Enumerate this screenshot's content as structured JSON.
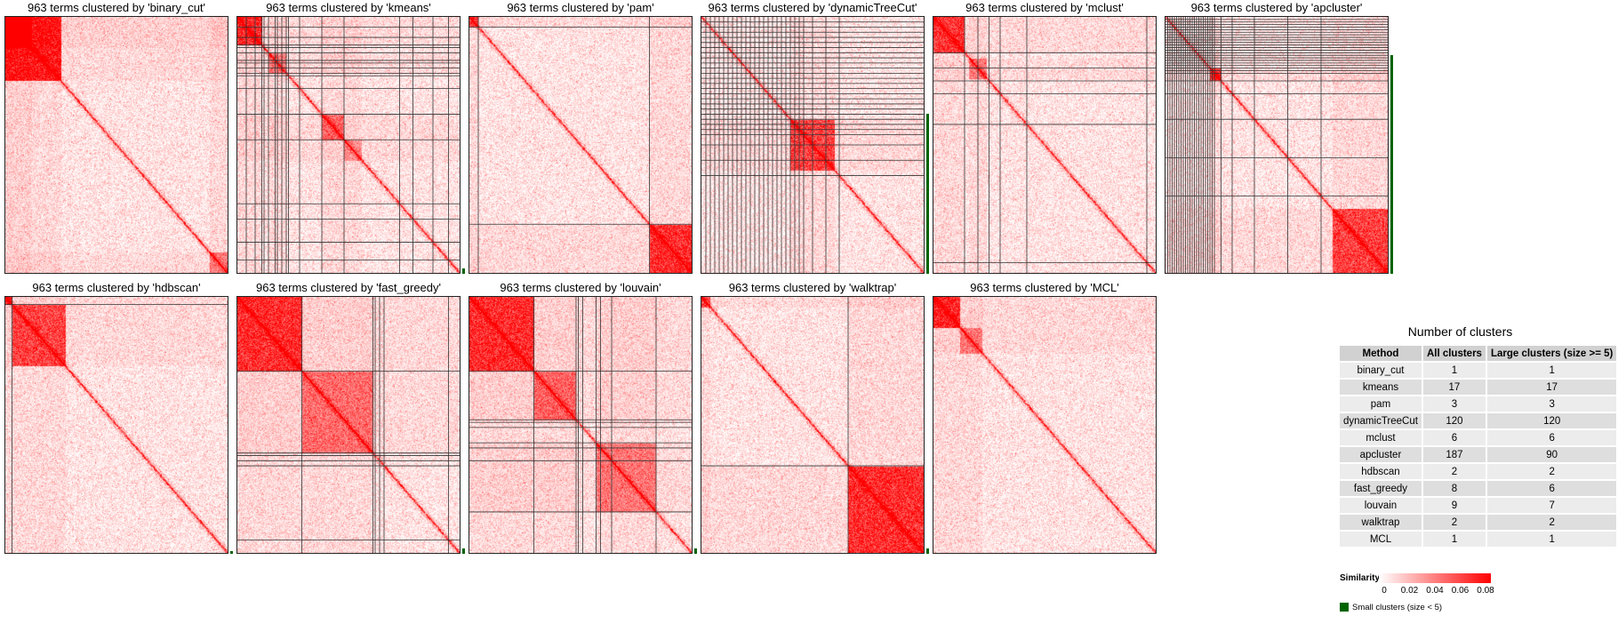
{
  "panels": [
    {
      "title": "963 terms clustered by 'binary_cut'",
      "method": "binary_cut",
      "boundaries": [],
      "blocks": [
        [
          0,
          0.25,
          1.0
        ],
        [
          0,
          0.12,
          0.9
        ],
        [
          0.92,
          1.0,
          0.5
        ]
      ],
      "small_bar": null
    },
    {
      "title": "963 terms clustered by 'kmeans'",
      "method": "kmeans",
      "boundaries": [
        0.04,
        0.08,
        0.11,
        0.12,
        0.14,
        0.17,
        0.18,
        0.2,
        0.22,
        0.23,
        0.28,
        0.38,
        0.48,
        0.73,
        0.79,
        0.88,
        0.95
      ],
      "blocks": [
        [
          0,
          0.11,
          0.9
        ],
        [
          0.38,
          0.48,
          0.6
        ],
        [
          0.14,
          0.22,
          0.5
        ],
        [
          0.48,
          0.56,
          0.4
        ]
      ],
      "small_bar": [
        0.98,
        1.0
      ]
    },
    {
      "title": "963 terms clustered by 'pam'",
      "method": "pam",
      "boundaries": [
        0.04,
        0.81
      ],
      "blocks": [
        [
          0,
          0.04,
          0.7
        ],
        [
          0.81,
          1.0,
          0.85
        ]
      ],
      "small_bar": null
    },
    {
      "title": "963 terms clustered by 'dynamicTreeCut'",
      "method": "dynamicTreeCut",
      "boundaries": [
        0.02,
        0.04,
        0.06,
        0.08,
        0.1,
        0.12,
        0.14,
        0.16,
        0.18,
        0.2,
        0.22,
        0.24,
        0.26,
        0.28,
        0.3,
        0.32,
        0.34,
        0.36,
        0.38,
        0.4,
        0.42,
        0.44,
        0.46,
        0.5,
        0.56,
        0.62
      ],
      "blocks": [
        [
          0.4,
          0.6,
          0.75
        ]
      ],
      "small_bar": [
        0.38,
        1.0
      ]
    },
    {
      "title": "963 terms clustered by 'mclust'",
      "method": "mclust",
      "boundaries": [
        0.14,
        0.2,
        0.25,
        0.3,
        0.42,
        0.96
      ],
      "blocks": [
        [
          0,
          0.14,
          0.8
        ],
        [
          0.16,
          0.24,
          0.5
        ]
      ],
      "small_bar": null
    },
    {
      "title": "963 terms clustered by 'apcluster'",
      "method": "apcluster",
      "boundaries": [
        0.01,
        0.02,
        0.03,
        0.04,
        0.05,
        0.06,
        0.07,
        0.08,
        0.09,
        0.1,
        0.11,
        0.12,
        0.13,
        0.14,
        0.15,
        0.16,
        0.17,
        0.18,
        0.19,
        0.2,
        0.21,
        0.22,
        0.25,
        0.3,
        0.4,
        0.55,
        0.7
      ],
      "blocks": [
        [
          0.2,
          0.25,
          0.85
        ],
        [
          0.75,
          1.0,
          0.75
        ]
      ],
      "small_bar": [
        0.15,
        1.0
      ]
    },
    {
      "title": "963 terms clustered by 'hdbscan'",
      "method": "hdbscan",
      "boundaries": [
        0.03
      ],
      "blocks": [
        [
          0,
          0.03,
          0.9
        ],
        [
          0.03,
          0.27,
          0.75
        ]
      ],
      "small_bar": [
        0.99,
        1.0
      ]
    },
    {
      "title": "963 terms clustered by 'fast_greedy'",
      "method": "fast_greedy",
      "boundaries": [
        0.29,
        0.61,
        0.62,
        0.64,
        0.66,
        0.95
      ],
      "blocks": [
        [
          0,
          0.29,
          0.85
        ],
        [
          0.29,
          0.61,
          0.55
        ]
      ],
      "small_bar": [
        0.98,
        1.0
      ]
    },
    {
      "title": "963 terms clustered by 'louvain'",
      "method": "louvain",
      "boundaries": [
        0.29,
        0.48,
        0.49,
        0.51,
        0.57,
        0.59,
        0.64,
        0.84
      ],
      "blocks": [
        [
          0,
          0.29,
          0.85
        ],
        [
          0.29,
          0.48,
          0.6
        ],
        [
          0.57,
          0.84,
          0.5
        ]
      ],
      "small_bar": [
        0.98,
        1.0
      ]
    },
    {
      "title": "963 terms clustered by 'walktrap'",
      "method": "walktrap",
      "boundaries": [
        0.66
      ],
      "blocks": [
        [
          0,
          0.04,
          0.7
        ],
        [
          0.66,
          1.0,
          0.85
        ]
      ],
      "small_bar": [
        0.98,
        1.0
      ]
    },
    {
      "title": "963 terms clustered by 'MCL'",
      "method": "MCL",
      "boundaries": [],
      "blocks": [
        [
          0,
          0.12,
          0.9
        ],
        [
          0.12,
          0.22,
          0.5
        ]
      ],
      "small_bar": null
    }
  ],
  "table": {
    "title": "Number of clusters",
    "headers": [
      "Method",
      "All clusters",
      "Large clusters (size >= 5)"
    ],
    "rows": [
      [
        "binary_cut",
        "1",
        "1"
      ],
      [
        "kmeans",
        "17",
        "17"
      ],
      [
        "pam",
        "3",
        "3"
      ],
      [
        "dynamicTreeCut",
        "120",
        "120"
      ],
      [
        "mclust",
        "6",
        "6"
      ],
      [
        "apcluster",
        "187",
        "90"
      ],
      [
        "hdbscan",
        "2",
        "2"
      ],
      [
        "fast_greedy",
        "8",
        "6"
      ],
      [
        "louvain",
        "9",
        "7"
      ],
      [
        "walktrap",
        "2",
        "2"
      ],
      [
        "MCL",
        "1",
        "1"
      ]
    ]
  },
  "legend": {
    "title": "Similarity",
    "ticks": [
      "0",
      "0.02",
      "0.04",
      "0.06",
      "0.08"
    ],
    "tick_values": [
      0,
      0.02,
      0.04,
      0.06,
      0.08
    ],
    "small_label": "Small clusters (size < 5)",
    "color_low": "#ffffff",
    "color_high": "#ff0000",
    "small_color": "#006400"
  },
  "chart_data": {
    "type": "heatmap",
    "n_terms": 963,
    "methods": [
      "binary_cut",
      "kmeans",
      "pam",
      "dynamicTreeCut",
      "mclust",
      "apcluster",
      "hdbscan",
      "fast_greedy",
      "louvain",
      "walktrap",
      "MCL"
    ],
    "color_scale": {
      "min": 0,
      "max": 0.08,
      "low": "#ffffff",
      "high": "#ff0000"
    }
  }
}
